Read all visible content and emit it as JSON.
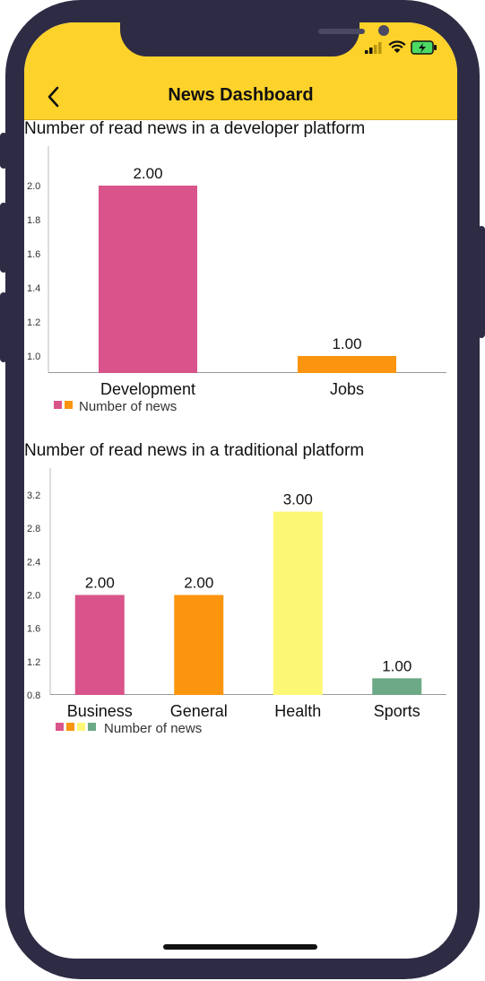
{
  "header": {
    "title": "News Dashboard"
  },
  "chart_data": [
    {
      "type": "bar",
      "title": "Number of read news in a developer platform",
      "categories": [
        "Development",
        "Jobs"
      ],
      "values": [
        2.0,
        1.0
      ],
      "value_labels": [
        "2.00",
        "1.00"
      ],
      "yticks": [
        "1.0",
        "1.2",
        "1.4",
        "1.6",
        "1.8",
        "2.0"
      ],
      "ylim": [
        0.9,
        2.1
      ],
      "colors": [
        "#d9548a",
        "#fb950f"
      ],
      "legend": {
        "label": "Number of news",
        "position": "bottom-left"
      },
      "grid": false
    },
    {
      "type": "bar",
      "title": "Number of read news in a traditional platform",
      "categories": [
        "Business",
        "General",
        "Health",
        "Sports"
      ],
      "values": [
        2.0,
        2.0,
        3.0,
        1.0
      ],
      "value_labels": [
        "2.00",
        "2.00",
        "3.00",
        "1.00"
      ],
      "yticks": [
        "0.8",
        "1.2",
        "1.6",
        "2.0",
        "2.4",
        "2.8",
        "3.2"
      ],
      "ylim": [
        0.8,
        3.2
      ],
      "colors": [
        "#d9548a",
        "#fb950f",
        "#fdf776",
        "#6ca986"
      ],
      "legend": {
        "label": "Number of news",
        "position": "bottom-left"
      },
      "grid": false
    }
  ]
}
